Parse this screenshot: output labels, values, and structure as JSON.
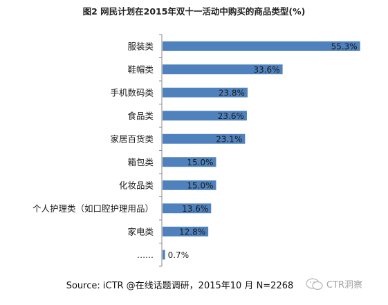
{
  "title": "图2 网民计划在2015年双十一活动中购买的商品类型(%)",
  "source": "Source: iCTR @在线话题调研，2015年10  月 N=2268",
  "watermark": "CTR洞察",
  "colors": {
    "bar": "#4f81bd",
    "axis": "#888888",
    "text": "#1a1a1a"
  },
  "chart_data": {
    "type": "bar",
    "orientation": "horizontal",
    "categories": [
      "服装类",
      "鞋帽类",
      "手机数码类",
      "食品类",
      "家居百货类",
      "箱包类",
      "化妆品类",
      "个人护理类（如口腔护理用品）",
      "家电类",
      "......"
    ],
    "values": [
      55.3,
      33.6,
      23.8,
      23.6,
      23.1,
      15.0,
      15.0,
      13.6,
      12.8,
      0.7
    ],
    "data_labels": [
      "55.3%",
      "33.6%",
      "23.8%",
      "23.6%",
      "23.1%",
      "15.0%",
      "15.0%",
      "13.6%",
      "12.8%",
      "0.7%"
    ],
    "title": "图2 网民计划在2015年双十一活动中购买的商品类型(%)",
    "xlabel": "",
    "ylabel": "",
    "xlim": [
      0,
      60
    ],
    "grid": false,
    "legend": "none"
  }
}
